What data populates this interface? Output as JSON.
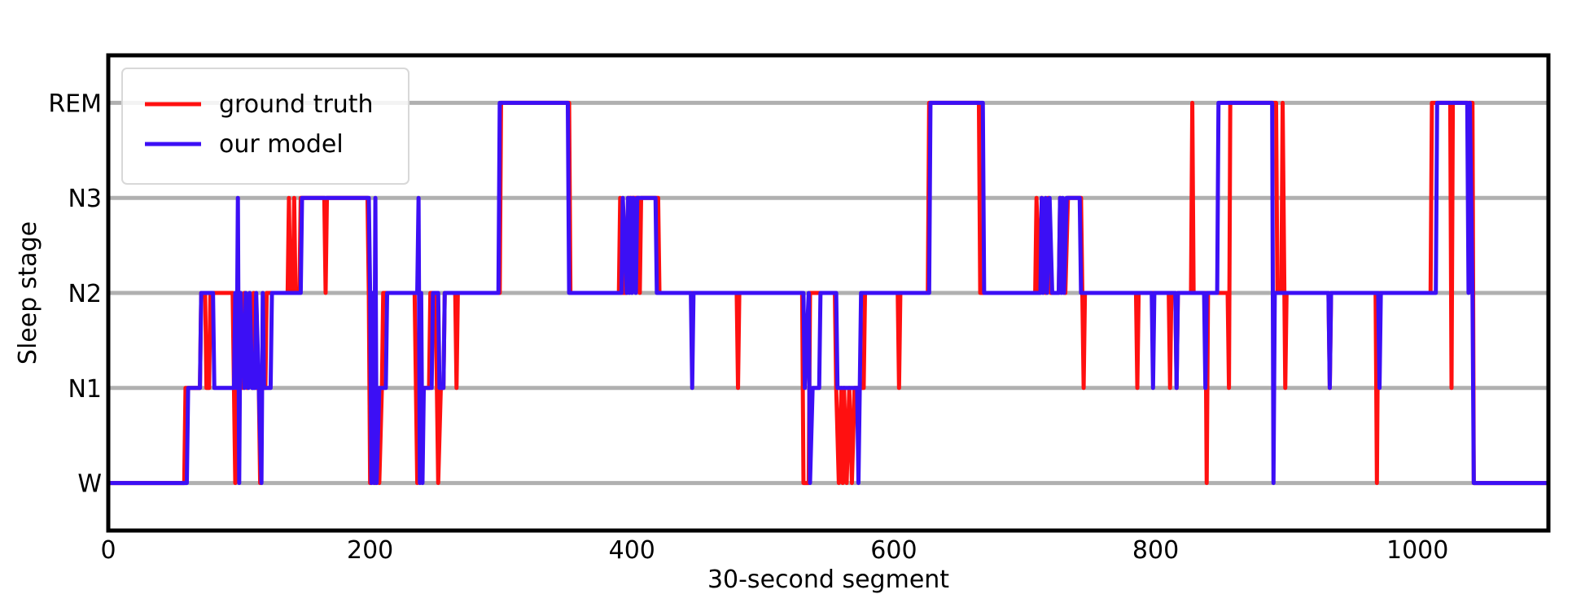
{
  "chart_data": {
    "type": "line",
    "title": "",
    "xlabel": "30-second segment",
    "ylabel": "Sleep stage",
    "xlim": [
      0,
      1100
    ],
    "ylim": [
      -0.5,
      4.5
    ],
    "x_ticks": [
      0,
      200,
      400,
      600,
      800,
      1000
    ],
    "y_categories": [
      "W",
      "N1",
      "N2",
      "N3",
      "REM"
    ],
    "grid": "horizontal at each stage",
    "legend": "top-left",
    "series": [
      {
        "name": "ground truth",
        "color": "#ff1010",
        "points": [
          [
            0,
            0
          ],
          [
            58,
            0
          ],
          [
            59,
            1
          ],
          [
            70,
            1
          ],
          [
            71,
            2
          ],
          [
            74,
            2
          ],
          [
            75,
            1
          ],
          [
            77,
            1
          ],
          [
            78,
            2
          ],
          [
            95,
            2
          ],
          [
            96,
            1
          ],
          [
            97,
            0
          ],
          [
            98,
            1
          ],
          [
            99,
            2
          ],
          [
            100,
            1
          ],
          [
            101,
            2
          ],
          [
            103,
            1
          ],
          [
            104,
            2
          ],
          [
            106,
            1
          ],
          [
            108,
            2
          ],
          [
            110,
            1
          ],
          [
            111,
            2
          ],
          [
            113,
            1
          ],
          [
            115,
            1
          ],
          [
            116,
            0
          ],
          [
            117,
            1
          ],
          [
            120,
            1
          ],
          [
            121,
            2
          ],
          [
            137,
            2
          ],
          [
            138,
            3
          ],
          [
            139,
            2
          ],
          [
            141,
            2
          ],
          [
            142,
            3
          ],
          [
            143,
            2
          ],
          [
            146,
            2
          ],
          [
            147,
            3
          ],
          [
            165,
            3
          ],
          [
            166,
            2
          ],
          [
            167,
            3
          ],
          [
            198,
            3
          ],
          [
            199,
            2
          ],
          [
            200,
            0
          ],
          [
            202,
            2
          ],
          [
            204,
            0
          ],
          [
            205,
            1
          ],
          [
            207,
            0
          ],
          [
            209,
            1
          ],
          [
            210,
            2
          ],
          [
            234,
            2
          ],
          [
            235,
            1
          ],
          [
            236,
            0
          ],
          [
            238,
            1
          ],
          [
            245,
            1
          ],
          [
            246,
            2
          ],
          [
            250,
            2
          ],
          [
            251,
            1
          ],
          [
            252,
            0
          ],
          [
            254,
            1
          ],
          [
            256,
            1
          ],
          [
            257,
            2
          ],
          [
            265,
            2
          ],
          [
            266,
            1
          ],
          [
            267,
            2
          ],
          [
            299,
            2
          ],
          [
            300,
            4
          ],
          [
            352,
            4
          ],
          [
            353,
            2
          ],
          [
            390,
            2
          ],
          [
            391,
            3
          ],
          [
            393,
            2
          ],
          [
            396,
            2
          ],
          [
            397,
            3
          ],
          [
            405,
            3
          ],
          [
            406,
            2
          ],
          [
            407,
            3
          ],
          [
            420,
            3
          ],
          [
            421,
            2
          ],
          [
            480,
            2
          ],
          [
            481,
            1
          ],
          [
            482,
            2
          ],
          [
            530,
            2
          ],
          [
            531,
            0
          ],
          [
            535,
            0
          ],
          [
            536,
            2
          ],
          [
            555,
            2
          ],
          [
            556,
            1
          ],
          [
            558,
            0
          ],
          [
            560,
            1
          ],
          [
            561,
            0
          ],
          [
            562,
            1
          ],
          [
            564,
            0
          ],
          [
            566,
            1
          ],
          [
            568,
            0
          ],
          [
            570,
            1
          ],
          [
            577,
            1
          ],
          [
            578,
            2
          ],
          [
            603,
            2
          ],
          [
            604,
            1
          ],
          [
            605,
            2
          ],
          [
            626,
            2
          ],
          [
            627,
            4
          ],
          [
            665,
            4
          ],
          [
            666,
            2
          ],
          [
            708,
            2
          ],
          [
            709,
            3
          ],
          [
            711,
            2
          ],
          [
            713,
            3
          ],
          [
            716,
            2
          ],
          [
            718,
            3
          ],
          [
            720,
            2
          ],
          [
            726,
            2
          ],
          [
            727,
            3
          ],
          [
            731,
            2
          ],
          [
            733,
            3
          ],
          [
            743,
            3
          ],
          [
            744,
            2
          ],
          [
            745,
            1
          ],
          [
            746,
            2
          ],
          [
            785,
            2
          ],
          [
            786,
            1
          ],
          [
            787,
            2
          ],
          [
            810,
            2
          ],
          [
            811,
            1
          ],
          [
            812,
            2
          ],
          [
            815,
            2
          ],
          [
            816,
            1
          ],
          [
            817,
            2
          ],
          [
            827,
            2
          ],
          [
            828,
            4
          ],
          [
            829,
            2
          ],
          [
            838,
            2
          ],
          [
            839,
            0
          ],
          [
            840,
            2
          ],
          [
            855,
            2
          ],
          [
            856,
            1
          ],
          [
            857,
            4
          ],
          [
            892,
            4
          ],
          [
            893,
            2
          ],
          [
            896,
            2
          ],
          [
            897,
            4
          ],
          [
            899,
            1
          ],
          [
            900,
            2
          ],
          [
            932,
            2
          ],
          [
            933,
            1
          ],
          [
            934,
            2
          ],
          [
            968,
            2
          ],
          [
            969,
            0
          ],
          [
            970,
            2
          ],
          [
            1010,
            2
          ],
          [
            1011,
            4
          ],
          [
            1025,
            4
          ],
          [
            1026,
            1
          ],
          [
            1027,
            4
          ],
          [
            1042,
            4
          ],
          [
            1043,
            0
          ],
          [
            1100,
            0
          ]
        ]
      },
      {
        "name": "our model",
        "color": "#3c0ff5",
        "points": [
          [
            0,
            0
          ],
          [
            60,
            0
          ],
          [
            61,
            1
          ],
          [
            70,
            1
          ],
          [
            71,
            2
          ],
          [
            80,
            2
          ],
          [
            81,
            1
          ],
          [
            96,
            1
          ],
          [
            97,
            2
          ],
          [
            98,
            1
          ],
          [
            99,
            3
          ],
          [
            100,
            0
          ],
          [
            101,
            2
          ],
          [
            104,
            1
          ],
          [
            105,
            2
          ],
          [
            107,
            1
          ],
          [
            108,
            2
          ],
          [
            110,
            1
          ],
          [
            112,
            1
          ],
          [
            113,
            2
          ],
          [
            115,
            1
          ],
          [
            117,
            0
          ],
          [
            118,
            2
          ],
          [
            119,
            1
          ],
          [
            124,
            1
          ],
          [
            125,
            2
          ],
          [
            147,
            2
          ],
          [
            148,
            3
          ],
          [
            199,
            3
          ],
          [
            200,
            2
          ],
          [
            201,
            0
          ],
          [
            202,
            2
          ],
          [
            203,
            0
          ],
          [
            204,
            3
          ],
          [
            205,
            0
          ],
          [
            207,
            1
          ],
          [
            212,
            1
          ],
          [
            213,
            2
          ],
          [
            236,
            2
          ],
          [
            237,
            3
          ],
          [
            238,
            0
          ],
          [
            239,
            2
          ],
          [
            240,
            0
          ],
          [
            241,
            1
          ],
          [
            247,
            1
          ],
          [
            248,
            2
          ],
          [
            252,
            2
          ],
          [
            253,
            1
          ],
          [
            256,
            1
          ],
          [
            257,
            2
          ],
          [
            298,
            2
          ],
          [
            299,
            4
          ],
          [
            351,
            4
          ],
          [
            352,
            2
          ],
          [
            392,
            2
          ],
          [
            393,
            3
          ],
          [
            396,
            2
          ],
          [
            397,
            3
          ],
          [
            398,
            2
          ],
          [
            399,
            3
          ],
          [
            400,
            2
          ],
          [
            401,
            3
          ],
          [
            403,
            2
          ],
          [
            404,
            3
          ],
          [
            418,
            3
          ],
          [
            419,
            2
          ],
          [
            445,
            2
          ],
          [
            446,
            1
          ],
          [
            447,
            2
          ],
          [
            531,
            2
          ],
          [
            532,
            1
          ],
          [
            535,
            2
          ],
          [
            536,
            0
          ],
          [
            538,
            1
          ],
          [
            543,
            1
          ],
          [
            544,
            2
          ],
          [
            556,
            2
          ],
          [
            557,
            1
          ],
          [
            572,
            1
          ],
          [
            573,
            0
          ],
          [
            574,
            1
          ],
          [
            575,
            2
          ],
          [
            627,
            2
          ],
          [
            628,
            4
          ],
          [
            668,
            4
          ],
          [
            669,
            2
          ],
          [
            712,
            2
          ],
          [
            713,
            3
          ],
          [
            714,
            2
          ],
          [
            716,
            3
          ],
          [
            717,
            2
          ],
          [
            719,
            3
          ],
          [
            721,
            2
          ],
          [
            726,
            2
          ],
          [
            727,
            3
          ],
          [
            728,
            2
          ],
          [
            729,
            3
          ],
          [
            730,
            2
          ],
          [
            732,
            3
          ],
          [
            742,
            3
          ],
          [
            743,
            2
          ],
          [
            797,
            2
          ],
          [
            798,
            1
          ],
          [
            799,
            2
          ],
          [
            815,
            2
          ],
          [
            816,
            1
          ],
          [
            817,
            2
          ],
          [
            837,
            2
          ],
          [
            838,
            1
          ],
          [
            839,
            2
          ],
          [
            847,
            2
          ],
          [
            848,
            4
          ],
          [
            889,
            4
          ],
          [
            890,
            0
          ],
          [
            891,
            2
          ],
          [
            932,
            2
          ],
          [
            933,
            1
          ],
          [
            934,
            2
          ],
          [
            970,
            2
          ],
          [
            971,
            1
          ],
          [
            972,
            2
          ],
          [
            1014,
            2
          ],
          [
            1015,
            4
          ],
          [
            1038,
            4
          ],
          [
            1039,
            2
          ],
          [
            1040,
            4
          ],
          [
            1042,
            2
          ],
          [
            1043,
            0
          ],
          [
            1100,
            0
          ]
        ]
      }
    ]
  }
}
